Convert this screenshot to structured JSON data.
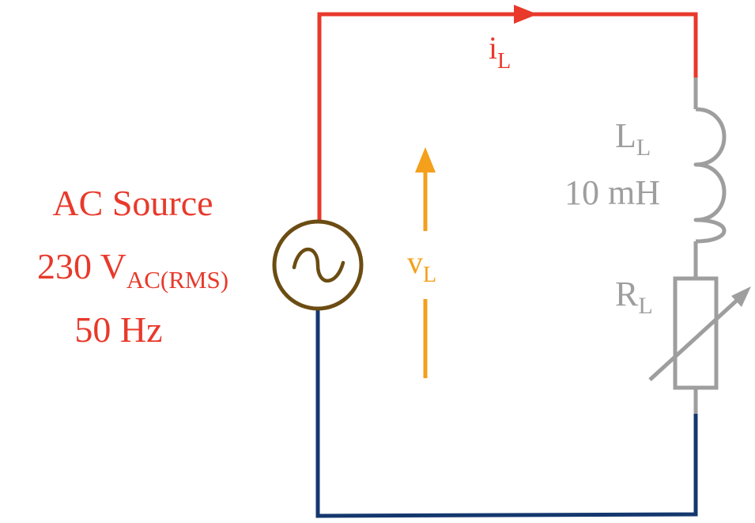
{
  "colors": {
    "hot": "#e8392b",
    "neutral": "#14386e",
    "component": "#9e9e9e",
    "source_ring": "#6b4c12",
    "voltage": "#f4a01c",
    "background": "#ffffff"
  },
  "source": {
    "title": "AC Source",
    "voltage_main": "230 V",
    "voltage_sub": "AC(RMS)",
    "frequency": "50 Hz",
    "icon": "sine-wave-icon"
  },
  "current": {
    "symbol": "i",
    "sub": "L"
  },
  "voltage": {
    "symbol": "v",
    "sub": "L"
  },
  "inductor": {
    "symbol": "L",
    "sub": "L",
    "value": "10 mH",
    "icon": "coil-icon"
  },
  "resistor": {
    "symbol": "R",
    "sub": "L",
    "icon": "variable-resistor-icon"
  }
}
